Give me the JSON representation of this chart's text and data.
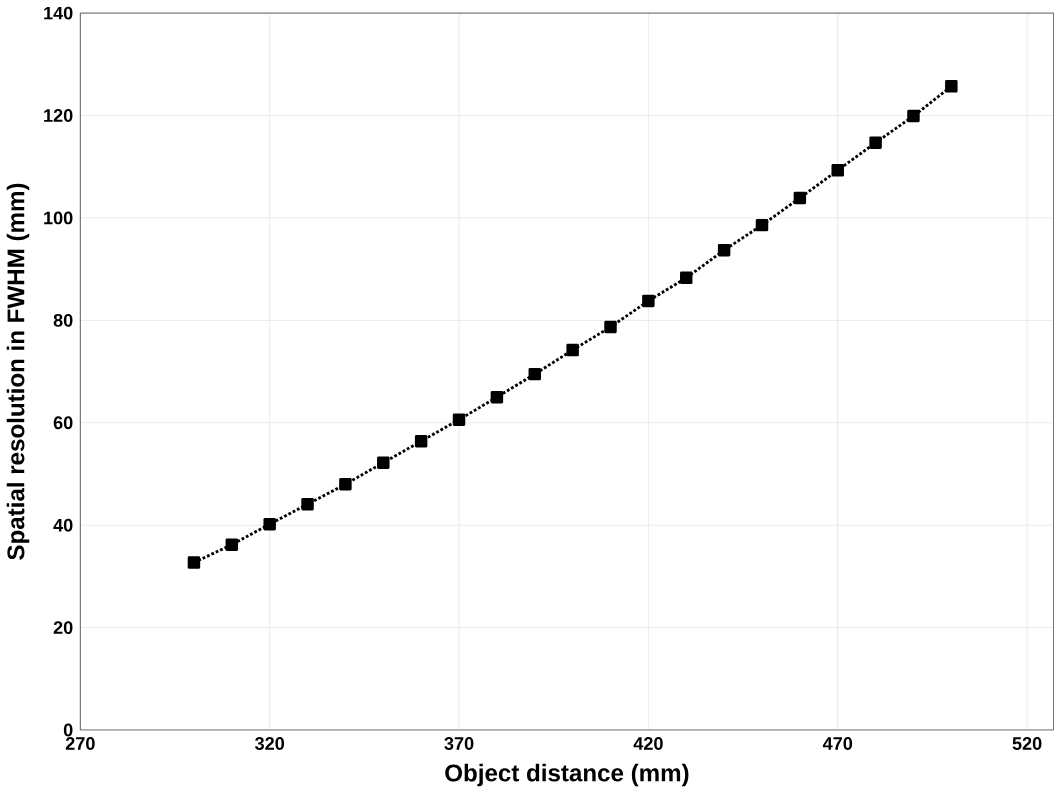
{
  "chart_data": {
    "type": "line",
    "xlabel": "Object distance (mm)",
    "ylabel": "Spatial resolution in FWHM (mm)",
    "x": [
      300,
      310,
      320,
      330,
      340,
      350,
      360,
      370,
      380,
      390,
      400,
      410,
      420,
      430,
      440,
      450,
      460,
      470,
      480,
      490,
      500
    ],
    "series": [
      {
        "color": "#000000",
        "values": [
          32.7,
          36.2,
          40.2,
          44.1,
          48.0,
          52.2,
          56.4,
          60.6,
          65.0,
          69.5,
          74.2,
          78.7,
          83.8,
          88.3,
          93.7,
          98.6,
          103.9,
          109.3,
          114.7,
          119.9,
          125.7
        ]
      }
    ],
    "xlim": [
      270,
      527
    ],
    "ylim": [
      0,
      140
    ],
    "xticks": [
      270,
      320,
      370,
      420,
      470,
      520
    ],
    "yticks": [
      0,
      20,
      40,
      60,
      80,
      100,
      120,
      140
    ],
    "grid": true,
    "marker": "square",
    "line_style": "dotted"
  }
}
